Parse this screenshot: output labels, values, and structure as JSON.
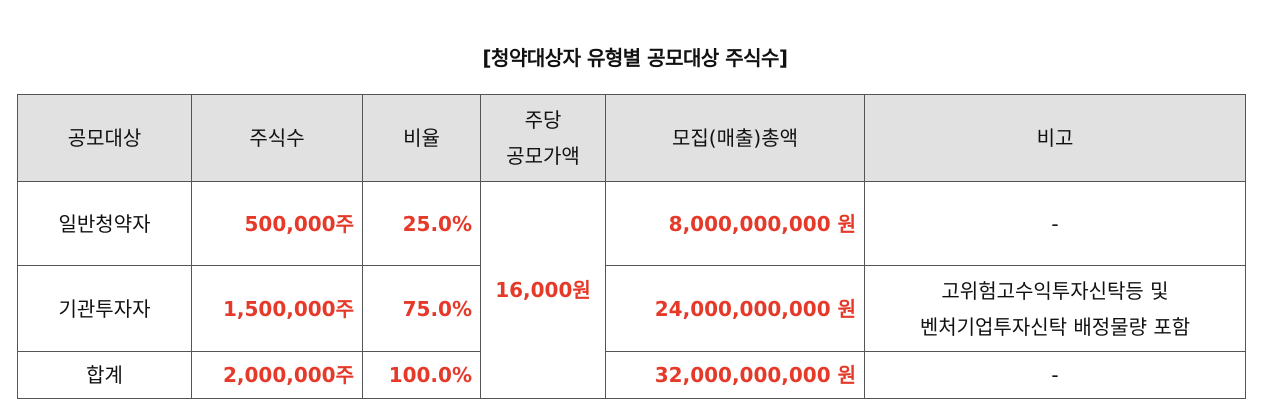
{
  "title": "[청약대상자 유형별 공모대상 주식수]",
  "headers": {
    "target": "공모대상",
    "shares": "주식수",
    "ratio": "비율",
    "price_line1": "주당",
    "price_line2": "공모가액",
    "total": "모집(매출)총액",
    "note": "비고"
  },
  "price_per_share": "16,000원",
  "rows": [
    {
      "target": "일반청약자",
      "shares": "500,000주",
      "ratio": "25.0%",
      "total": "8,000,000,000 원",
      "note_line1": "-",
      "note_line2": ""
    },
    {
      "target": "기관투자자",
      "shares": "1,500,000주",
      "ratio": "75.0%",
      "total": "24,000,000,000 원",
      "note_line1": "고위험고수익투자신탁등 및",
      "note_line2": "벤처기업투자신탁 배정물량 포함"
    },
    {
      "target": "합계",
      "shares": "2,000,000주",
      "ratio": "100.0%",
      "total": "32,000,000,000 원",
      "note_line1": "-",
      "note_line2": ""
    }
  ],
  "colors": {
    "accent_red": "#e53a2a",
    "header_bg": "#e1e1e1",
    "border": "#555555"
  }
}
